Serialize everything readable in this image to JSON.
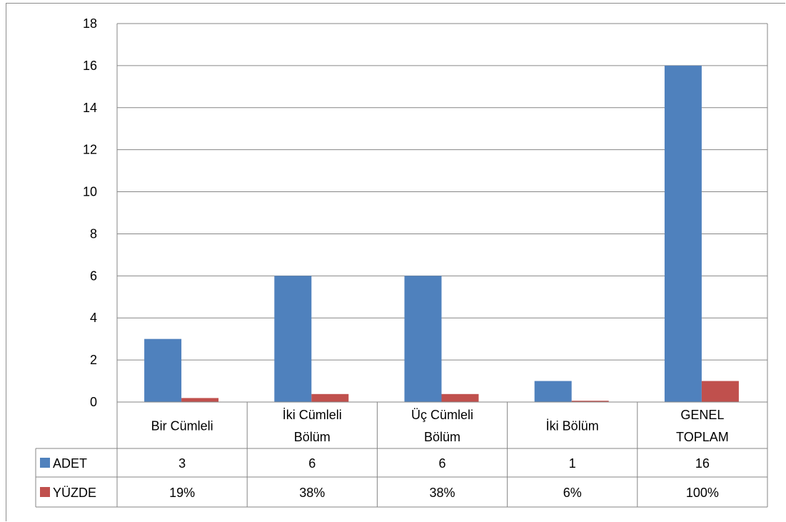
{
  "chart_data": {
    "type": "bar",
    "categories": [
      [
        "Bir Cümleli"
      ],
      [
        "İki Cümleli",
        "Bölüm"
      ],
      [
        "Üç Cümleli",
        "Bölüm"
      ],
      [
        "İki Bölüm"
      ],
      [
        "GENEL",
        "TOPLAM"
      ]
    ],
    "series": [
      {
        "name": "ADET",
        "color": "#4F81BD",
        "values": [
          3,
          6,
          6,
          1,
          16
        ],
        "labels": [
          "3",
          "6",
          "6",
          "1",
          "16"
        ]
      },
      {
        "name": "YÜZDE",
        "color": "#C0504D",
        "values": [
          0.19,
          0.38,
          0.38,
          0.06,
          1.0
        ],
        "labels": [
          "19%",
          "38%",
          "38%",
          "6%",
          "100%"
        ]
      }
    ],
    "ylim": [
      0,
      18
    ],
    "yticks": [
      0,
      2,
      4,
      6,
      8,
      10,
      12,
      14,
      16,
      18
    ],
    "grid": true,
    "legend": "data-table"
  }
}
